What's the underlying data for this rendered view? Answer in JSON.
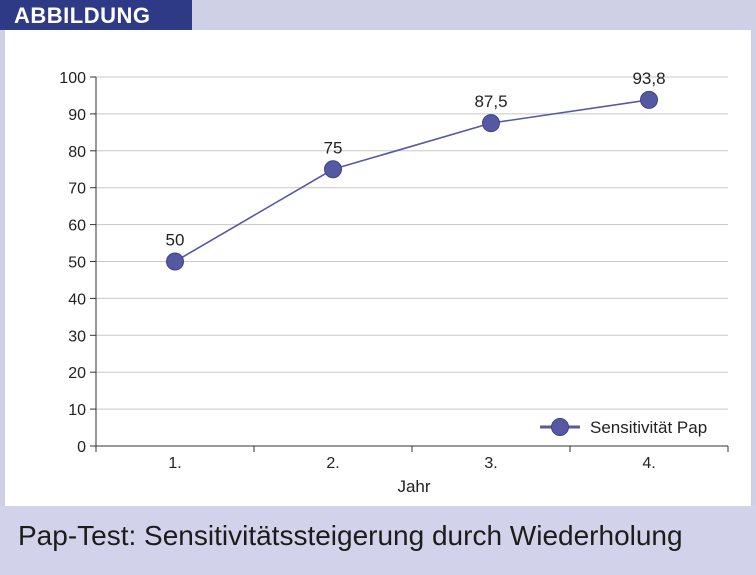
{
  "badge": "ABBILDUNG",
  "caption": "Pap-Test: Sensitivitätssteigerung durch Wiederholung",
  "colors": {
    "series": "#5559a2",
    "badge": "#2f3a87",
    "frame": "#cfcfe6",
    "grid": "#c8c8c8"
  },
  "chart_data": {
    "type": "line",
    "categories": [
      "1.",
      "2.",
      "3.",
      "4."
    ],
    "series": [
      {
        "name": "Sensitivität Pap",
        "values": [
          50,
          75,
          87.5,
          93.8
        ]
      }
    ],
    "data_labels": [
      "50",
      "75",
      "87,5",
      "93,8"
    ],
    "xlabel": "Jahr",
    "ylabel": "",
    "ylim": [
      0,
      100
    ],
    "yticks": [
      "0",
      "10",
      "20",
      "30",
      "40",
      "50",
      "60",
      "70",
      "80",
      "90",
      "100"
    ],
    "grid": true,
    "legend": "bottom-right"
  }
}
